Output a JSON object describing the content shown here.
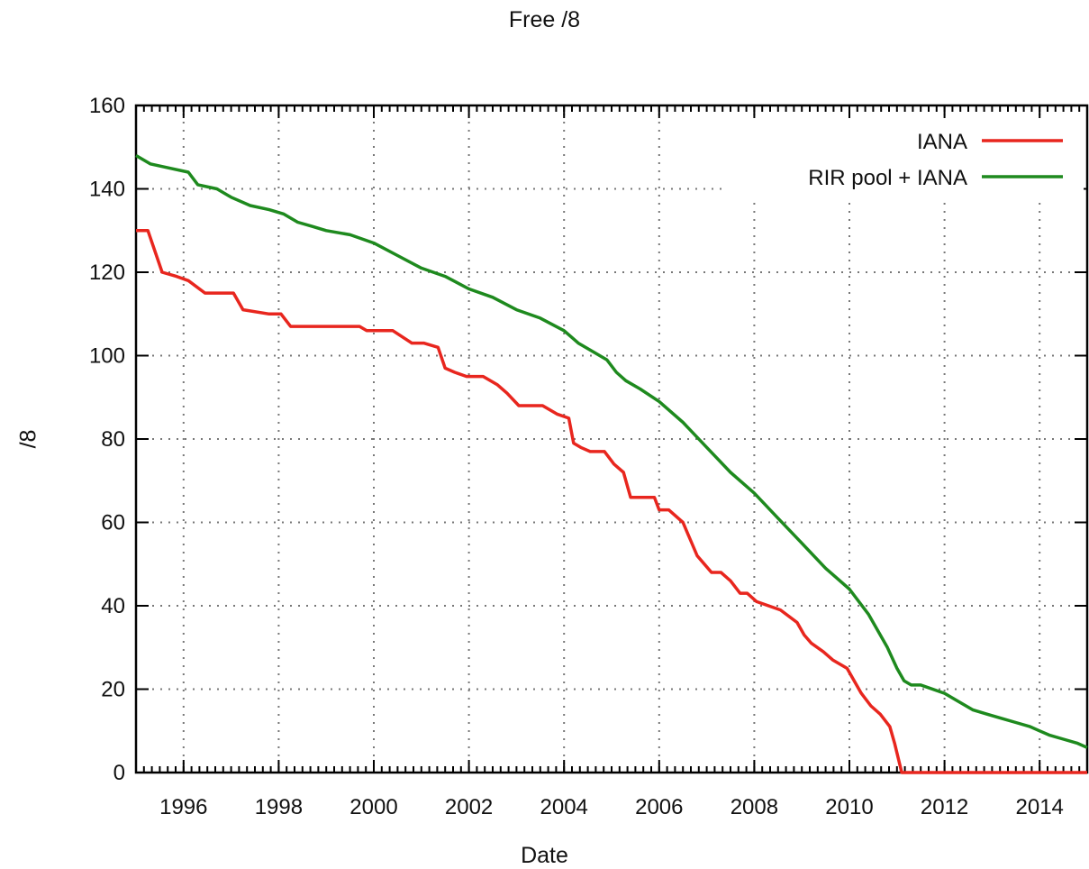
{
  "chart_data": {
    "type": "line",
    "title": "Free /8",
    "xlabel": "Date",
    "ylabel": "/8",
    "xlim": [
      1995.0,
      2015.0
    ],
    "ylim": [
      0,
      160
    ],
    "x_ticks": [
      1996,
      1998,
      2000,
      2002,
      2004,
      2006,
      2008,
      2010,
      2012,
      2014
    ],
    "y_ticks": [
      0,
      20,
      40,
      60,
      80,
      100,
      120,
      140,
      160
    ],
    "grid": true,
    "grid_style": "dotted",
    "legend_position": "top-right",
    "series": [
      {
        "name": "IANA",
        "color": "#e8261e",
        "x": [
          1995.0,
          1995.25,
          1995.55,
          1995.85,
          1996.1,
          1996.45,
          1997.05,
          1997.25,
          1997.8,
          1998.05,
          1998.25,
          1998.7,
          1999.2,
          1999.7,
          1999.85,
          2000.25,
          2000.4,
          2000.8,
          2001.05,
          2001.35,
          2001.5,
          2001.7,
          2001.95,
          2002.3,
          2002.6,
          2002.8,
          2003.05,
          2003.3,
          2003.55,
          2003.85,
          2004.1,
          2004.2,
          2004.35,
          2004.55,
          2004.85,
          2005.05,
          2005.25,
          2005.4,
          2005.6,
          2005.9,
          2006.0,
          2006.2,
          2006.5,
          2006.65,
          2006.8,
          2006.95,
          2007.1,
          2007.3,
          2007.5,
          2007.7,
          2007.85,
          2008.05,
          2008.3,
          2008.55,
          2008.9,
          2009.05,
          2009.2,
          2009.45,
          2009.65,
          2009.95,
          2010.1,
          2010.25,
          2010.45,
          2010.65,
          2010.85,
          2010.95,
          2011.1,
          2012.0,
          2013.0,
          2014.0,
          2015.0
        ],
        "values": [
          130,
          130,
          120,
          119,
          118,
          115,
          115,
          111,
          110,
          110,
          107,
          107,
          107,
          107,
          106,
          106,
          106,
          103,
          103,
          102,
          97,
          96,
          95,
          95,
          93,
          91,
          88,
          88,
          88,
          86,
          85,
          79,
          78,
          77,
          77,
          74,
          72,
          66,
          66,
          66,
          63,
          63,
          60,
          56,
          52,
          50,
          48,
          48,
          46,
          43,
          43,
          41,
          40,
          39,
          36,
          33,
          31,
          29,
          27,
          25,
          22,
          19,
          16,
          14,
          11,
          7,
          0,
          0,
          0,
          0,
          0
        ]
      },
      {
        "name": "RIR pool + IANA",
        "color": "#1e8a1e",
        "x": [
          1995.0,
          1995.3,
          1995.7,
          1996.1,
          1996.3,
          1996.7,
          1997.0,
          1997.4,
          1997.8,
          1998.1,
          1998.4,
          1998.7,
          1999.0,
          1999.5,
          2000.0,
          2000.5,
          2001.0,
          2001.5,
          2002.0,
          2002.5,
          2003.0,
          2003.5,
          2004.0,
          2004.3,
          2004.6,
          2004.9,
          2005.1,
          2005.3,
          2005.6,
          2006.0,
          2006.5,
          2007.0,
          2007.5,
          2008.0,
          2008.5,
          2009.0,
          2009.5,
          2010.0,
          2010.4,
          2010.8,
          2011.0,
          2011.15,
          2011.3,
          2011.5,
          2012.0,
          2012.3,
          2012.6,
          2012.9,
          2013.2,
          2013.5,
          2013.8,
          2014.0,
          2014.2,
          2014.5,
          2014.8,
          2015.0
        ],
        "values": [
          148,
          146,
          145,
          144,
          141,
          140,
          138,
          136,
          135,
          134,
          132,
          131,
          130,
          129,
          127,
          124,
          121,
          119,
          116,
          114,
          111,
          109,
          106,
          103,
          101,
          99,
          96,
          94,
          92,
          89,
          84,
          78,
          72,
          67,
          61,
          55,
          49,
          44,
          38,
          30,
          25,
          22,
          21,
          21,
          19,
          17,
          15,
          14,
          13,
          12,
          11,
          10,
          9,
          8,
          7,
          6
        ]
      }
    ]
  }
}
